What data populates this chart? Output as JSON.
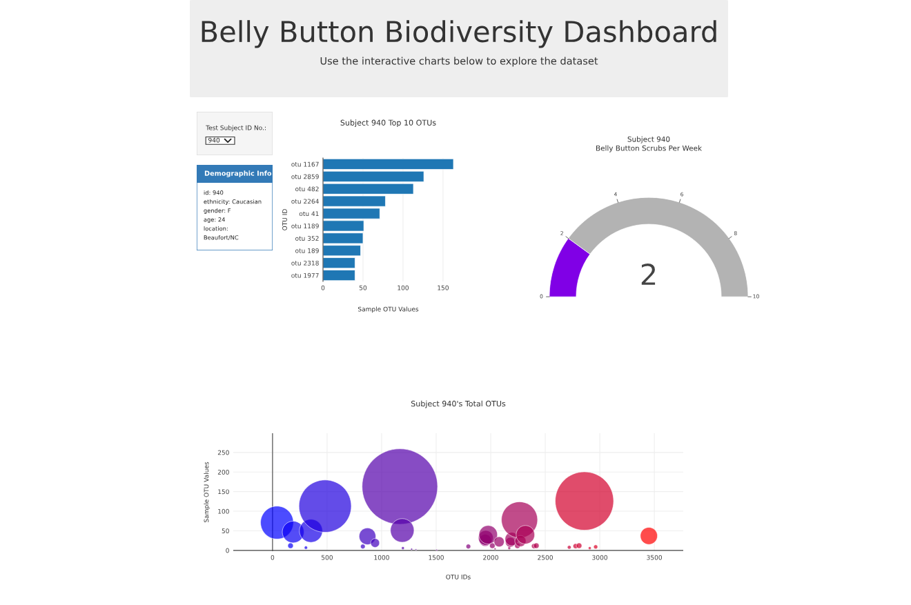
{
  "chart_data": [
    {
      "type": "other",
      "title": "Belly Button Biodiversity Dashboard",
      "subtitle": "Use the interactive charts below to explore the dataset"
    },
    {
      "type": "other",
      "title": "Test Subject ID No.:",
      "annotations": [
        "940"
      ]
    },
    {
      "type": "other",
      "title": "Demographic Info",
      "annotations": [
        "id: 940",
        "ethnicity: Caucasian",
        "gender: F",
        "age: 24",
        "location:",
        "Beaufort/NC"
      ]
    },
    {
      "type": "bar",
      "orientation": "horizontal",
      "title": "Subject 940 Top 10 OTUs",
      "xlabel": "Sample OTU Values",
      "ylabel": "OTU ID",
      "categories": [
        "otu 1167",
        "otu 2859",
        "otu 482",
        "otu 2264",
        "otu 41",
        "otu 1189",
        "otu 352",
        "otu 189",
        "otu 2318",
        "otu 1977"
      ],
      "values": [
        163,
        126,
        113,
        78,
        71,
        51,
        50,
        47,
        40,
        40
      ],
      "color": "#1f77b4",
      "xlim": [
        0,
        163
      ],
      "xticks": [
        0,
        50,
        100,
        150
      ],
      "grid": "x"
    },
    {
      "type": "donut",
      "title": "Subject 940",
      "subtitle": "Belly Button Scrubs Per Week",
      "categories": [
        null,
        null
      ],
      "values": [
        20,
        80
      ],
      "colors": [
        "#8000e6",
        "#b3b3b3"
      ],
      "annotations": [
        "2",
        "0",
        "2",
        "4",
        "6",
        "8",
        "10"
      ]
    },
    {
      "type": "bubble",
      "title": "Subject 940's Total OTUs",
      "xlabel": "OTU IDs",
      "ylabel": "Sample OTU Values",
      "x": [
        41,
        165,
        189,
        306,
        352,
        482,
        828,
        870,
        940,
        1167,
        1189,
        1195,
        1275,
        1315,
        1505,
        1795,
        1950,
        1955,
        1977,
        2015,
        2040,
        2077,
        2170,
        2180,
        2193,
        2245,
        2264,
        2272,
        2318,
        2397,
        2418,
        2720,
        2778,
        2810,
        2859,
        2908,
        2962,
        3450
      ],
      "values": [
        71,
        12,
        47,
        7,
        50,
        113,
        10,
        36,
        19,
        163,
        51,
        6,
        3,
        2,
        1,
        10,
        26,
        32,
        40,
        12,
        4,
        22,
        6,
        21,
        29,
        12,
        78,
        24,
        40,
        11,
        12,
        8,
        11,
        12,
        126,
        6,
        9,
        37
      ],
      "sizes": [
        0.19,
        0.0054,
        0.083,
        0.0018,
        0.094,
        0.481,
        0.0038,
        0.049,
        0.0136,
        1,
        0.098,
        0.0014,
        0.0006,
        0.0004,
        0.0004,
        0.0038,
        0.0254,
        0.0385,
        0.06,
        0.0054,
        0.0006,
        0.0182,
        0.0014,
        0.0166,
        0.0317,
        0.0054,
        0.229,
        0.0217,
        0.06,
        0.0046,
        0.0054,
        0.0024,
        0.0046,
        0.0054,
        0.598,
        0.0014,
        0.003,
        0.0515
      ],
      "colors": [
        "#0000ff",
        "#0900f6",
        "#0b00f4",
        "#1400eb",
        "#1700e8",
        "#2100de",
        "#3b00c4",
        "#3e00c1",
        "#4300bc",
        "#5400ab",
        "#5600a9",
        "#5600a9",
        "#5c00a3",
        "#5f00a0",
        "#6d0092",
        "#83007c",
        "#8f0070",
        "#8f0070",
        "#91006e",
        "#94006b",
        "#960069",
        "#980067",
        "#9f0060",
        "#a0005f",
        "#a1005e",
        "#a5005a",
        "#a60059",
        "#a70058",
        "#aa0055",
        "#b0004f",
        "#b2004d",
        "#c80037",
        "#cd0032",
        "#cf0030",
        "#d3002c",
        "#d60029",
        "#da0025",
        "#ff0000"
      ],
      "xlim": [
        -360,
        3765
      ],
      "xticks": [
        0,
        500,
        1000,
        1500,
        2000,
        2500,
        3000,
        3500
      ],
      "ylim": [
        -2,
        299
      ],
      "yticks": [
        0,
        50,
        100,
        150,
        200,
        250
      ],
      "grid": true,
      "ref_lines": [
        {
          "axis": "x",
          "value": 0,
          "color": "#444444"
        }
      ]
    }
  ]
}
